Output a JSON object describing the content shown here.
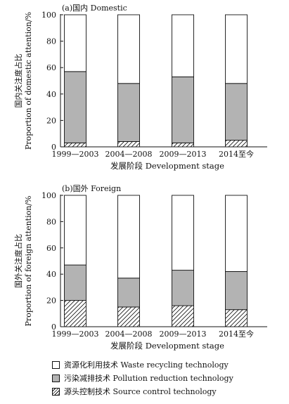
{
  "chart_data": [
    {
      "type": "bar",
      "stacked": true,
      "title": "(a)国内 Domestic",
      "ylabel": "国内关注度占比\nProportion of domestic attention/%",
      "xlabel": "发展阶段 Development stage",
      "categories": [
        "1999—2003",
        "2004—2008",
        "2009—2013",
        "2014至今"
      ],
      "ylim": [
        0,
        100
      ],
      "yticks": [
        0,
        20,
        40,
        60,
        80,
        100
      ],
      "series": [
        {
          "name": "源头控制技术 Source control technology",
          "values": [
            3,
            4,
            3,
            5
          ]
        },
        {
          "name": "污染减排技术 Pollution reduction technology",
          "values": [
            54,
            44,
            50,
            43
          ]
        },
        {
          "name": "资源化利用技术 Waste recycling technology",
          "values": [
            43,
            52,
            47,
            52
          ]
        }
      ]
    },
    {
      "type": "bar",
      "stacked": true,
      "title": "(b)国外 Foreign",
      "ylabel": "国外关注度占比\nProportion of foreign attention/%",
      "xlabel": "发展阶段 Development stage",
      "categories": [
        "1999—2003",
        "2004—2008",
        "2009—2013",
        "2014至今"
      ],
      "ylim": [
        0,
        100
      ],
      "yticks": [
        0,
        20,
        40,
        60,
        80,
        100
      ],
      "series": [
        {
          "name": "源头控制技术 Source control technology",
          "values": [
            20,
            15,
            16,
            13
          ]
        },
        {
          "name": "污染减排技术 Pollution reduction technology",
          "values": [
            27,
            22,
            27,
            29
          ]
        },
        {
          "name": "资源化利用技术 Waste recycling technology",
          "values": [
            53,
            63,
            57,
            58
          ]
        }
      ]
    }
  ],
  "legend": [
    {
      "label": "资源化利用技术 Waste recycling technology",
      "fill": "white"
    },
    {
      "label": "污染减排技术 Pollution reduction technology",
      "fill": "gray"
    },
    {
      "label": "源头控制技术 Source control technology",
      "fill": "hatch"
    }
  ],
  "colors": {
    "recycling": "#ffffff",
    "reduction": "#b3b3b3",
    "source": "#ffffff",
    "ink": "#111111"
  }
}
